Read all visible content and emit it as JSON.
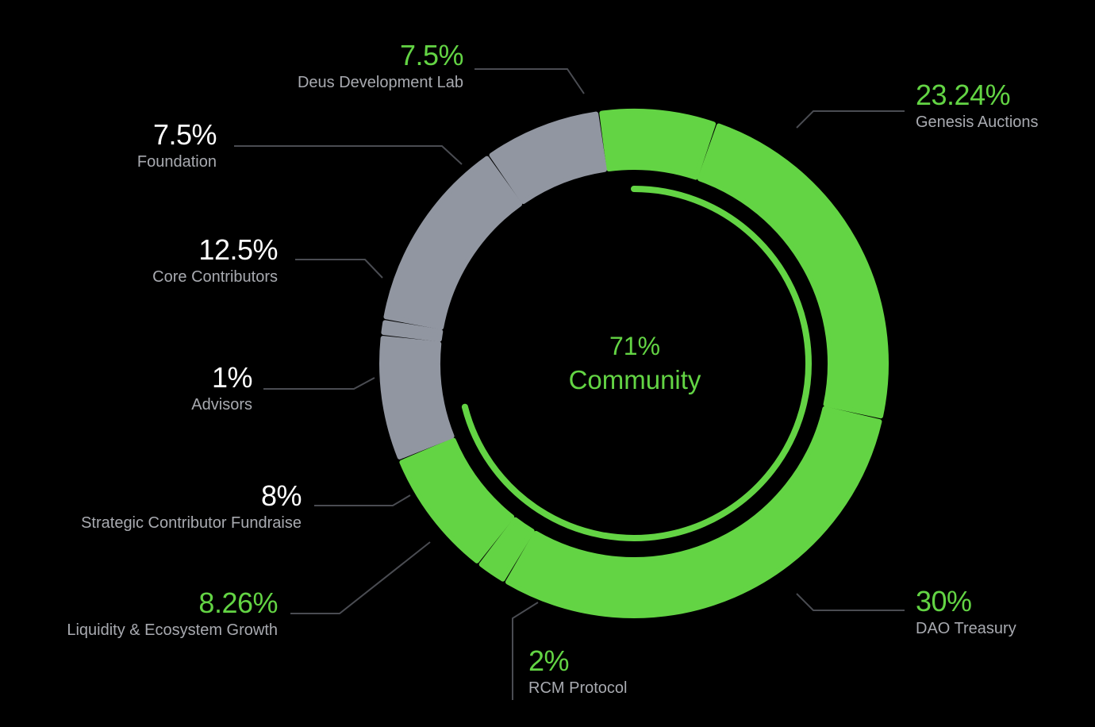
{
  "colors": {
    "background": "#000000",
    "community_green": "#63d444",
    "other_gray": "#9196a1",
    "white_text": "#ffffff",
    "name_text": "#a8aab0",
    "leader_line": "#4a4c52"
  },
  "chart_data": {
    "type": "donut",
    "title": "",
    "center": {
      "value": "71%",
      "label": "Community"
    },
    "inner_arc_fraction": 0.71,
    "slices": [
      {
        "name": "Deus Development Lab",
        "label_value": "7.5%",
        "value": 7.5,
        "group": "community"
      },
      {
        "name": "Genesis Auctions",
        "label_value": "23.24%",
        "value": 23.24,
        "group": "community"
      },
      {
        "name": "DAO Treasury",
        "label_value": "30%",
        "value": 30,
        "group": "community"
      },
      {
        "name": "RCM Protocol",
        "label_value": "2%",
        "value": 2,
        "group": "community"
      },
      {
        "name": "Liquidity & Ecosystem Growth",
        "label_value": "8.26%",
        "value": 8.26,
        "group": "community"
      },
      {
        "name": "Strategic Contributor Fundraise",
        "label_value": "8%",
        "value": 8,
        "group": "other"
      },
      {
        "name": "Advisors",
        "label_value": "1%",
        "value": 1,
        "group": "other"
      },
      {
        "name": "Core Contributors",
        "label_value": "12.5%",
        "value": 12.5,
        "group": "other"
      },
      {
        "name": "Foundation",
        "label_value": "7.5%",
        "value": 7.5,
        "group": "other"
      }
    ]
  }
}
